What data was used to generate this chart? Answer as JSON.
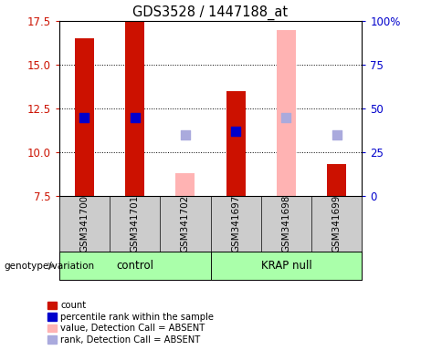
{
  "title": "GDS3528 / 1447188_at",
  "samples": [
    "GSM341700",
    "GSM341701",
    "GSM341702",
    "GSM341697",
    "GSM341698",
    "GSM341699"
  ],
  "bar_values": [
    16.5,
    17.5,
    null,
    13.5,
    null,
    9.3
  ],
  "bar_absent_values": [
    null,
    null,
    8.8,
    null,
    17.0,
    null
  ],
  "dot_values": [
    12.0,
    12.0,
    null,
    11.2,
    null,
    null
  ],
  "dot_absent_values": [
    null,
    null,
    11.0,
    null,
    12.0,
    11.0
  ],
  "bar_color": "#cc1100",
  "bar_absent_color": "#ffb3b3",
  "dot_color": "#0000cc",
  "dot_absent_color": "#aaaadd",
  "ylim": [
    7.5,
    17.5
  ],
  "yticks": [
    7.5,
    10.0,
    12.5,
    15.0,
    17.5
  ],
  "y2lim": [
    0,
    100
  ],
  "y2ticks": [
    0,
    25,
    50,
    75,
    100
  ],
  "y2ticklabels": [
    "0",
    "25",
    "50",
    "75",
    "100%"
  ],
  "ylabel_color_left": "#cc1100",
  "ylabel_color_right": "#0000cc",
  "dot_size": 55,
  "control_color": "#aaffaa",
  "krap_color": "#aaffaa",
  "legend_items": [
    {
      "label": "count",
      "color": "#cc1100"
    },
    {
      "label": "percentile rank within the sample",
      "color": "#0000cc"
    },
    {
      "label": "value, Detection Call = ABSENT",
      "color": "#ffb3b3"
    },
    {
      "label": "rank, Detection Call = ABSENT",
      "color": "#aaaadd"
    }
  ],
  "bg_color": "#cccccc",
  "plot_bg": "#ffffff"
}
